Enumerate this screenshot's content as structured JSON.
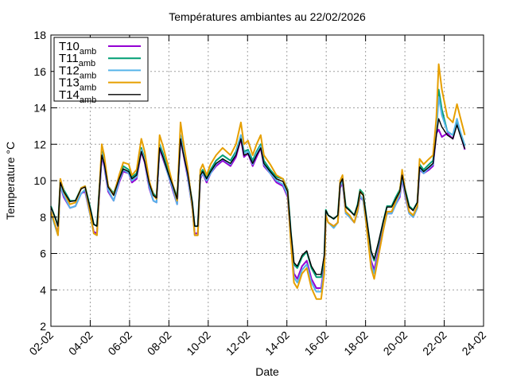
{
  "chart_data": {
    "type": "line",
    "title": "Températures ambiantes au 22/02/2026",
    "xlabel": "Date",
    "ylabel": "Temperature °C",
    "xlim": [
      0,
      22
    ],
    "ylim": [
      2,
      18
    ],
    "grid": true,
    "legend_position": "top-left",
    "x_unit": "days since 02-02",
    "x_ticks": [
      0,
      2,
      4,
      6,
      8,
      10,
      12,
      14,
      16,
      18,
      20,
      22
    ],
    "x_tick_labels": [
      "02-02",
      "04-02",
      "06-02",
      "08-02",
      "10-02",
      "12-02",
      "14-02",
      "16-02",
      "18-02",
      "20-02",
      "22-02",
      "24-02"
    ],
    "y_ticks": [
      2,
      4,
      6,
      8,
      10,
      12,
      14,
      16,
      18
    ],
    "y_tick_labels": [
      "2",
      "4",
      "6",
      "8",
      "10",
      "12",
      "14",
      "16",
      "18"
    ],
    "x": [
      0,
      0.24,
      0.36,
      0.48,
      0.65,
      0.97,
      1.25,
      1.54,
      1.74,
      1.98,
      2.18,
      2.34,
      2.46,
      2.59,
      2.71,
      2.91,
      3.19,
      3.47,
      3.68,
      3.96,
      4.12,
      4.36,
      4.6,
      4.77,
      5.0,
      5.21,
      5.37,
      5.53,
      5.7,
      5.94,
      6.22,
      6.42,
      6.59,
      6.71,
      6.95,
      7.19,
      7.31,
      7.47,
      7.6,
      7.72,
      7.92,
      8.12,
      8.4,
      8.73,
      9.13,
      9.41,
      9.66,
      9.82,
      10.02,
      10.26,
      10.46,
      10.67,
      10.83,
      11.15,
      11.47,
      11.8,
      12.04,
      12.2,
      12.36,
      12.53,
      12.77,
      13.01,
      13.25,
      13.5,
      13.74,
      13.9,
      13.98,
      14.1,
      14.38,
      14.59,
      14.71,
      14.83,
      14.99,
      15.19,
      15.43,
      15.6,
      15.72,
      15.88,
      16.08,
      16.28,
      16.44,
      16.65,
      16.89,
      17.09,
      17.33,
      17.54,
      17.74,
      17.86,
      18.02,
      18.22,
      18.42,
      18.63,
      18.75,
      18.95,
      19.23,
      19.43,
      19.6,
      19.72,
      19.88,
      20.16,
      20.44,
      20.65,
      20.81,
      21.05
    ],
    "series": [
      {
        "name": "T10",
        "subscript": "amb",
        "color": "#9400d3",
        "values": [
          8.2,
          7.5,
          7.1,
          9.7,
          9.1,
          8.5,
          8.6,
          9.3,
          9.4,
          8.2,
          7.2,
          7.1,
          9.1,
          11.3,
          10.8,
          9.4,
          8.9,
          9.9,
          10.5,
          10.4,
          9.9,
          10.1,
          11.6,
          11.0,
          9.6,
          8.9,
          8.8,
          11.8,
          11.2,
          10.4,
          9.4,
          8.7,
          12.3,
          11.6,
          10.2,
          8.5,
          7.1,
          7.1,
          10.1,
          10.4,
          9.9,
          10.4,
          10.8,
          11.1,
          10.8,
          11.3,
          12.3,
          11.3,
          11.5,
          10.8,
          11.3,
          11.8,
          10.8,
          10.4,
          9.9,
          9.7,
          9.1,
          6.7,
          4.9,
          4.6,
          5.3,
          5.6,
          4.6,
          4.1,
          4.1,
          5.3,
          8.0,
          7.7,
          7.5,
          7.7,
          9.6,
          9.9,
          8.2,
          8.0,
          7.7,
          8.3,
          9.1,
          8.9,
          7.3,
          5.6,
          5.1,
          6.1,
          7.3,
          8.2,
          8.2,
          8.7,
          9.1,
          10.1,
          9.1,
          8.2,
          8.0,
          8.5,
          10.6,
          10.4,
          10.6,
          10.8,
          12.6,
          12.8,
          12.4,
          12.6,
          12.3,
          13.2,
          12.6,
          11.7
        ]
      },
      {
        "name": "T11",
        "subscript": "amb",
        "color": "#009e73",
        "values": [
          8.6,
          7.9,
          7.5,
          10.0,
          9.5,
          8.9,
          8.9,
          9.6,
          9.7,
          8.6,
          7.6,
          7.5,
          9.5,
          11.6,
          11.1,
          9.7,
          9.3,
          10.2,
          10.8,
          10.6,
          10.2,
          10.4,
          11.8,
          11.2,
          9.9,
          9.3,
          9.1,
          12.0,
          11.5,
          10.6,
          9.7,
          9.1,
          12.5,
          11.8,
          10.5,
          8.8,
          7.5,
          7.5,
          10.4,
          10.6,
          10.2,
          10.6,
          11.1,
          11.4,
          11.1,
          11.6,
          12.5,
          11.6,
          11.7,
          11.1,
          11.6,
          12.0,
          11.1,
          10.6,
          10.2,
          10.1,
          9.5,
          7.2,
          5.4,
          5.2,
          5.8,
          6.1,
          5.2,
          4.7,
          4.7,
          5.8,
          8.4,
          8.1,
          7.9,
          8.1,
          9.9,
          10.2,
          8.6,
          8.4,
          8.1,
          8.7,
          9.5,
          9.3,
          7.7,
          6.1,
          5.6,
          6.5,
          7.7,
          8.6,
          8.6,
          9.1,
          9.5,
          10.4,
          9.5,
          8.6,
          8.4,
          8.8,
          10.9,
          10.6,
          10.9,
          11.1,
          12.7,
          15.0,
          13.9,
          12.7,
          12.5,
          13.3,
          12.7,
          11.9
        ]
      },
      {
        "name": "T12",
        "subscript": "amb",
        "color": "#56b4e9",
        "values": [
          8.2,
          7.4,
          7.0,
          9.7,
          9.2,
          8.5,
          8.6,
          9.3,
          9.5,
          8.2,
          7.1,
          7.0,
          9.2,
          11.5,
          10.9,
          9.5,
          8.9,
          10.0,
          10.6,
          10.4,
          10.0,
          10.2,
          11.7,
          11.1,
          9.7,
          8.9,
          8.8,
          11.9,
          11.3,
          10.4,
          9.5,
          8.7,
          12.5,
          11.7,
          10.3,
          8.5,
          7.0,
          7.0,
          10.2,
          10.4,
          10.0,
          10.4,
          10.9,
          11.2,
          10.9,
          11.5,
          12.5,
          11.5,
          11.6,
          10.9,
          11.5,
          11.9,
          10.9,
          10.4,
          10.0,
          9.8,
          9.2,
          6.6,
          4.7,
          4.4,
          5.1,
          5.4,
          4.4,
          3.9,
          3.9,
          5.1,
          8.0,
          7.7,
          7.4,
          7.7,
          9.7,
          10.0,
          8.2,
          8.0,
          7.7,
          8.3,
          9.2,
          8.9,
          7.2,
          5.4,
          4.9,
          5.9,
          7.2,
          8.2,
          8.2,
          8.7,
          9.2,
          10.2,
          9.2,
          8.2,
          8.0,
          8.5,
          10.7,
          10.4,
          10.7,
          10.9,
          12.7,
          14.6,
          13.6,
          12.7,
          12.5,
          13.4,
          12.7,
          11.9
        ]
      },
      {
        "name": "T13",
        "subscript": "amb",
        "color": "#e69f00",
        "values": [
          8.3,
          7.5,
          7.0,
          10.1,
          9.4,
          8.7,
          8.8,
          9.6,
          9.7,
          8.3,
          7.1,
          7.0,
          9.4,
          12.0,
          11.4,
          9.7,
          9.2,
          10.3,
          11.0,
          10.9,
          10.3,
          10.6,
          12.3,
          11.6,
          10.0,
          9.2,
          9.0,
          12.5,
          11.9,
          10.9,
          9.7,
          8.9,
          13.2,
          12.3,
          10.7,
          8.6,
          7.0,
          7.0,
          10.6,
          10.9,
          10.3,
          10.9,
          11.4,
          11.8,
          11.4,
          12.0,
          13.2,
          12.0,
          12.2,
          11.4,
          12.0,
          12.5,
          11.4,
          10.9,
          10.3,
          10.1,
          9.4,
          6.6,
          4.4,
          4.1,
          4.9,
          5.2,
          4.1,
          3.5,
          3.5,
          4.9,
          8.1,
          7.7,
          7.5,
          7.7,
          10.0,
          10.3,
          8.3,
          8.1,
          7.7,
          8.4,
          9.4,
          9.2,
          7.2,
          5.2,
          4.6,
          5.8,
          7.2,
          8.3,
          8.3,
          8.9,
          9.4,
          10.6,
          9.4,
          8.3,
          8.1,
          8.6,
          11.2,
          10.9,
          11.2,
          11.4,
          13.5,
          16.4,
          15.0,
          13.5,
          13.2,
          14.2,
          13.5,
          12.5
        ]
      },
      {
        "name": "T14",
        "subscript": "amb",
        "color": "#000000",
        "values": [
          8.55,
          7.9,
          7.5,
          9.9,
          9.4,
          8.85,
          8.9,
          9.55,
          9.65,
          8.55,
          7.6,
          7.5,
          9.4,
          11.4,
          10.95,
          9.65,
          9.2,
          10.1,
          10.65,
          10.5,
          10.1,
          10.3,
          11.6,
          11.05,
          9.85,
          9.2,
          9.05,
          11.8,
          11.3,
          10.5,
          9.65,
          9.0,
          12.3,
          11.6,
          10.4,
          8.8,
          7.5,
          7.5,
          10.3,
          10.5,
          10.1,
          10.5,
          10.95,
          11.2,
          10.95,
          11.4,
          12.3,
          11.4,
          11.5,
          10.95,
          11.4,
          11.8,
          10.95,
          10.5,
          10.1,
          9.95,
          9.4,
          7.2,
          5.5,
          5.3,
          5.9,
          6.15,
          5.3,
          4.85,
          4.85,
          5.9,
          8.35,
          8.1,
          7.9,
          8.1,
          9.85,
          10.1,
          8.55,
          8.35,
          8.1,
          8.65,
          9.4,
          9.2,
          7.7,
          6.15,
          5.7,
          6.6,
          7.7,
          8.55,
          8.55,
          9.0,
          9.4,
          10.3,
          9.4,
          8.55,
          8.35,
          8.8,
          10.75,
          10.5,
          10.75,
          10.95,
          12.5,
          13.4,
          12.95,
          12.5,
          12.3,
          13.05,
          12.5,
          11.75
        ]
      }
    ]
  }
}
